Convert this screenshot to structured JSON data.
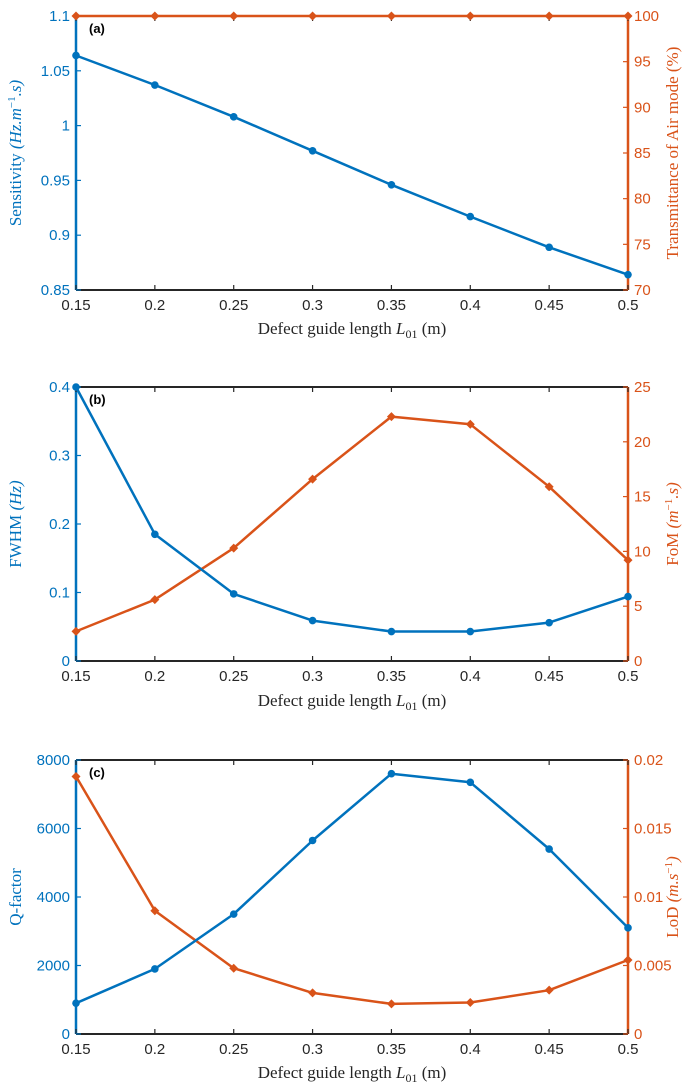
{
  "colors": {
    "left": "#0072BD",
    "right": "#D95319",
    "axis": "#262626"
  },
  "chart_data": [
    {
      "type": "line",
      "panel_label": "(a)",
      "x": [
        0.15,
        0.2,
        0.25,
        0.3,
        0.35,
        0.4,
        0.45,
        0.5
      ],
      "x_ticks": [
        "0.15",
        "0.2",
        "0.25",
        "0.3",
        "0.35",
        "0.4",
        "0.45",
        "0.5"
      ],
      "xlim": [
        0.15,
        0.5
      ],
      "xlabel": "Defect guide length",
      "xlabel_symbol": "L",
      "xlabel_sub": "01",
      "xlabel_unit": "(m)",
      "left": {
        "label": "Sensitivity",
        "label_math": "(Hz.m",
        "label_sup": "−1",
        "label_tail": ".s)",
        "ylim": [
          0.85,
          1.1
        ],
        "ticks": [
          0.85,
          0.9,
          0.95,
          1,
          1.05,
          1.1
        ],
        "tick_labels": [
          "0.85",
          "0.9",
          "0.95",
          "1",
          "1.05",
          "1.1"
        ],
        "values": [
          1.064,
          1.037,
          1.008,
          0.977,
          0.946,
          0.917,
          0.889,
          0.864
        ],
        "marker": "circle"
      },
      "right": {
        "label": "Transmittance of Air mode (%)",
        "ylim": [
          70,
          100
        ],
        "ticks": [
          70,
          75,
          80,
          85,
          90,
          95,
          100
        ],
        "tick_labels": [
          "70",
          "75",
          "80",
          "85",
          "90",
          "95",
          "100"
        ],
        "values": [
          100,
          100,
          100,
          100,
          100,
          100,
          100,
          100
        ],
        "marker": "diamond"
      }
    },
    {
      "type": "line",
      "panel_label": "(b)",
      "x": [
        0.15,
        0.2,
        0.25,
        0.3,
        0.35,
        0.4,
        0.45,
        0.5
      ],
      "x_ticks": [
        "0.15",
        "0.2",
        "0.25",
        "0.3",
        "0.35",
        "0.4",
        "0.45",
        "0.5"
      ],
      "xlim": [
        0.15,
        0.5
      ],
      "xlabel": "Defect guide length",
      "xlabel_symbol": "L",
      "xlabel_sub": "01",
      "xlabel_unit": "(m)",
      "left": {
        "label": "FWHM",
        "label_math": "(Hz)",
        "label_sup": "",
        "label_tail": "",
        "ylim": [
          0,
          0.4
        ],
        "ticks": [
          0,
          0.1,
          0.2,
          0.3,
          0.4
        ],
        "tick_labels": [
          "0",
          "0.1",
          "0.2",
          "0.3",
          "0.4"
        ],
        "values": [
          0.4,
          0.185,
          0.098,
          0.059,
          0.043,
          0.043,
          0.056,
          0.094
        ],
        "marker": "circle"
      },
      "right": {
        "label": "FoM",
        "label_math": "(m",
        "label_sup": "−1",
        "label_tail": ".s)",
        "ylim": [
          0,
          25
        ],
        "ticks": [
          0,
          5,
          10,
          15,
          20,
          25
        ],
        "tick_labels": [
          "0",
          "5",
          "10",
          "15",
          "20",
          "25"
        ],
        "values": [
          2.7,
          5.6,
          10.3,
          16.6,
          22.3,
          21.6,
          15.9,
          9.2
        ],
        "marker": "diamond"
      }
    },
    {
      "type": "line",
      "panel_label": "(c)",
      "x": [
        0.15,
        0.2,
        0.25,
        0.3,
        0.35,
        0.4,
        0.45,
        0.5
      ],
      "x_ticks": [
        "0.15",
        "0.2",
        "0.25",
        "0.3",
        "0.35",
        "0.4",
        "0.45",
        "0.5"
      ],
      "xlim": [
        0.15,
        0.5
      ],
      "xlabel": "Defect guide length",
      "xlabel_symbol": "L",
      "xlabel_sub": "01",
      "xlabel_unit": "(m)",
      "left": {
        "label": "Q-factor",
        "label_math": "",
        "label_sup": "",
        "label_tail": "",
        "ylim": [
          0,
          8000
        ],
        "ticks": [
          0,
          2000,
          4000,
          6000,
          8000
        ],
        "tick_labels": [
          "0",
          "2000",
          "4000",
          "6000",
          "8000"
        ],
        "values": [
          900,
          1900,
          3500,
          5650,
          7600,
          7350,
          5400,
          3100
        ],
        "marker": "circle"
      },
      "right": {
        "label": "LoD",
        "label_math": "(m.s",
        "label_sup": "−1",
        "label_tail": ")",
        "ylim": [
          0,
          0.02
        ],
        "ticks": [
          0,
          0.005,
          0.01,
          0.015,
          0.02
        ],
        "tick_labels": [
          "0",
          "0.005",
          "0.01",
          "0.015",
          "0.02"
        ],
        "values": [
          0.0188,
          0.009,
          0.0048,
          0.003,
          0.0022,
          0.0023,
          0.0032,
          0.0054
        ],
        "marker": "diamond"
      }
    }
  ]
}
